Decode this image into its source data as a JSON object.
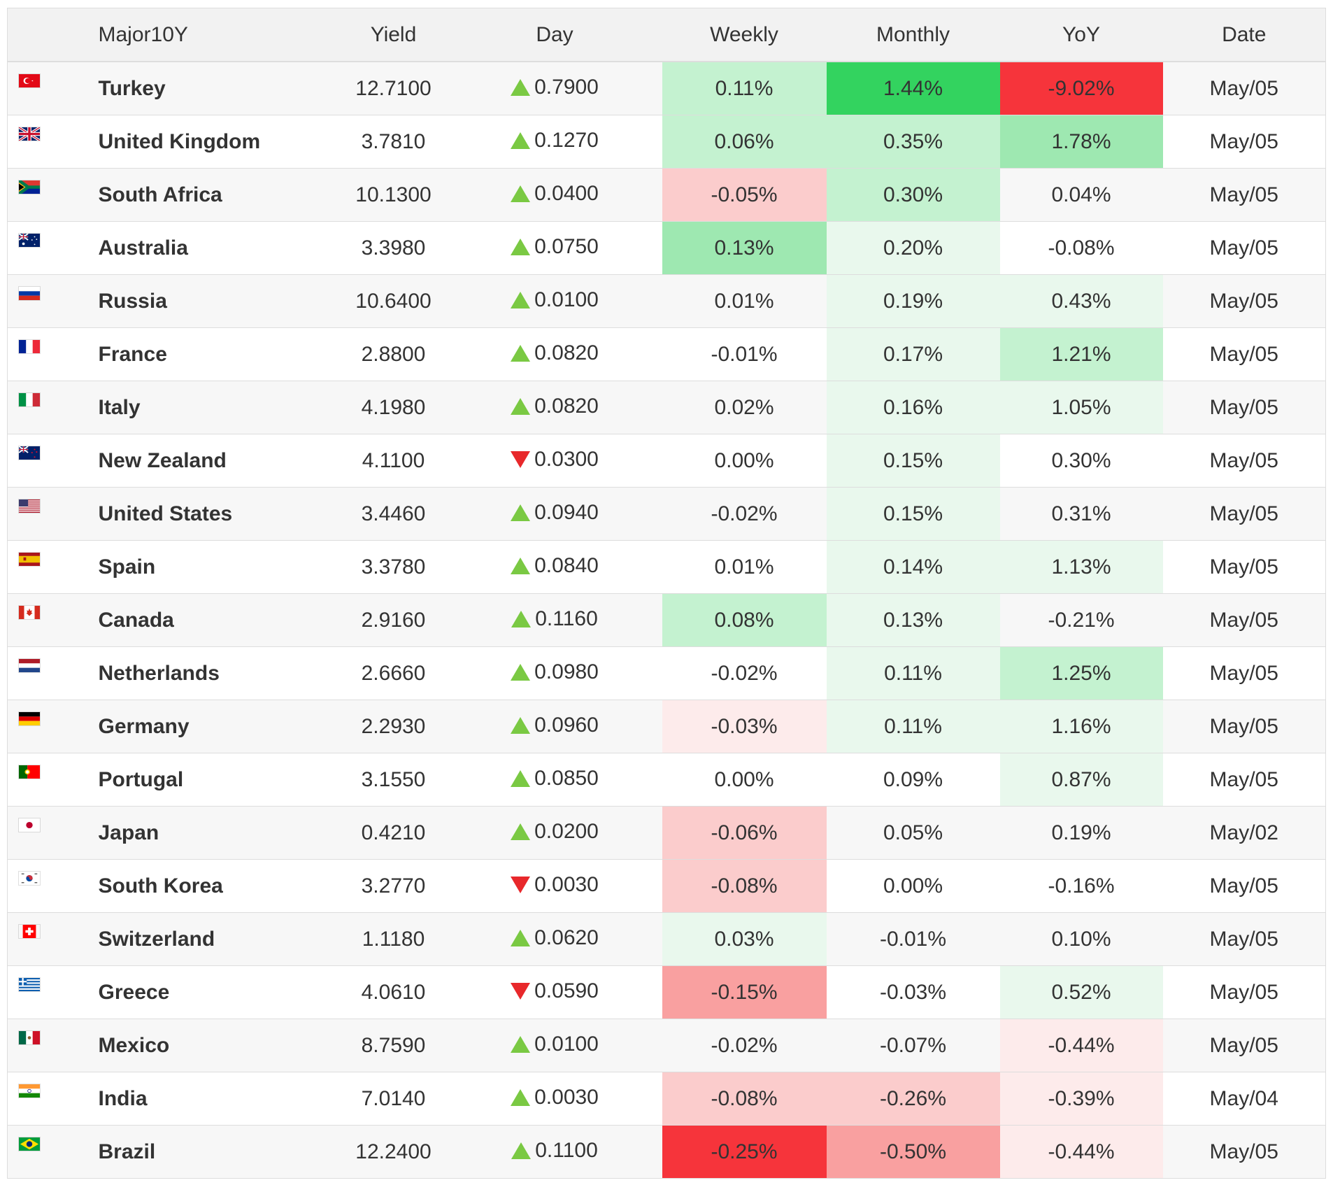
{
  "table": {
    "headers": [
      "Major10Y",
      "Yield",
      "Day",
      "Weekly",
      "Monthly",
      "YoY",
      "Date"
    ],
    "rows": [
      {
        "country": "Turkey",
        "flag_icon": "turkey-flag-icon",
        "yield": "12.7100",
        "day": "0.7900",
        "day_direction": "up",
        "weekly": "0.11%",
        "monthly": "1.44%",
        "yoy": "-9.02%",
        "date": "May/05"
      },
      {
        "country": "United Kingdom",
        "flag_icon": "united-kingdom-flag-icon",
        "yield": "3.7810",
        "day": "0.1270",
        "day_direction": "up",
        "weekly": "0.06%",
        "monthly": "0.35%",
        "yoy": "1.78%",
        "date": "May/05"
      },
      {
        "country": "South Africa",
        "flag_icon": "south-africa-flag-icon",
        "yield": "10.1300",
        "day": "0.0400",
        "day_direction": "up",
        "weekly": "-0.05%",
        "monthly": "0.30%",
        "yoy": "0.04%",
        "date": "May/05"
      },
      {
        "country": "Australia",
        "flag_icon": "australia-flag-icon",
        "yield": "3.3980",
        "day": "0.0750",
        "day_direction": "up",
        "weekly": "0.13%",
        "monthly": "0.20%",
        "yoy": "-0.08%",
        "date": "May/05"
      },
      {
        "country": "Russia",
        "flag_icon": "russia-flag-icon",
        "yield": "10.6400",
        "day": "0.0100",
        "day_direction": "up",
        "weekly": "0.01%",
        "monthly": "0.19%",
        "yoy": "0.43%",
        "date": "May/05"
      },
      {
        "country": "France",
        "flag_icon": "france-flag-icon",
        "yield": "2.8800",
        "day": "0.0820",
        "day_direction": "up",
        "weekly": "-0.01%",
        "monthly": "0.17%",
        "yoy": "1.21%",
        "date": "May/05"
      },
      {
        "country": "Italy",
        "flag_icon": "italy-flag-icon",
        "yield": "4.1980",
        "day": "0.0820",
        "day_direction": "up",
        "weekly": "0.02%",
        "monthly": "0.16%",
        "yoy": "1.05%",
        "date": "May/05"
      },
      {
        "country": "New Zealand",
        "flag_icon": "new-zealand-flag-icon",
        "yield": "4.1100",
        "day": "0.0300",
        "day_direction": "down",
        "weekly": "0.00%",
        "monthly": "0.15%",
        "yoy": "0.30%",
        "date": "May/05"
      },
      {
        "country": "United States",
        "flag_icon": "united-states-flag-icon",
        "yield": "3.4460",
        "day": "0.0940",
        "day_direction": "up",
        "weekly": "-0.02%",
        "monthly": "0.15%",
        "yoy": "0.31%",
        "date": "May/05"
      },
      {
        "country": "Spain",
        "flag_icon": "spain-flag-icon",
        "yield": "3.3780",
        "day": "0.0840",
        "day_direction": "up",
        "weekly": "0.01%",
        "monthly": "0.14%",
        "yoy": "1.13%",
        "date": "May/05"
      },
      {
        "country": "Canada",
        "flag_icon": "canada-flag-icon",
        "yield": "2.9160",
        "day": "0.1160",
        "day_direction": "up",
        "weekly": "0.08%",
        "monthly": "0.13%",
        "yoy": "-0.21%",
        "date": "May/05"
      },
      {
        "country": "Netherlands",
        "flag_icon": "netherlands-flag-icon",
        "yield": "2.6660",
        "day": "0.0980",
        "day_direction": "up",
        "weekly": "-0.02%",
        "monthly": "0.11%",
        "yoy": "1.25%",
        "date": "May/05"
      },
      {
        "country": "Germany",
        "flag_icon": "germany-flag-icon",
        "yield": "2.2930",
        "day": "0.0960",
        "day_direction": "up",
        "weekly": "-0.03%",
        "monthly": "0.11%",
        "yoy": "1.16%",
        "date": "May/05"
      },
      {
        "country": "Portugal",
        "flag_icon": "portugal-flag-icon",
        "yield": "3.1550",
        "day": "0.0850",
        "day_direction": "up",
        "weekly": "0.00%",
        "monthly": "0.09%",
        "yoy": "0.87%",
        "date": "May/05"
      },
      {
        "country": "Japan",
        "flag_icon": "japan-flag-icon",
        "yield": "0.4210",
        "day": "0.0200",
        "day_direction": "up",
        "weekly": "-0.06%",
        "monthly": "0.05%",
        "yoy": "0.19%",
        "date": "May/02"
      },
      {
        "country": "South Korea",
        "flag_icon": "south-korea-flag-icon",
        "yield": "3.2770",
        "day": "0.0030",
        "day_direction": "down",
        "weekly": "-0.08%",
        "monthly": "0.00%",
        "yoy": "-0.16%",
        "date": "May/05"
      },
      {
        "country": "Switzerland",
        "flag_icon": "switzerland-flag-icon",
        "yield": "1.1180",
        "day": "0.0620",
        "day_direction": "up",
        "weekly": "0.03%",
        "monthly": "-0.01%",
        "yoy": "0.10%",
        "date": "May/05"
      },
      {
        "country": "Greece",
        "flag_icon": "greece-flag-icon",
        "yield": "4.0610",
        "day": "0.0590",
        "day_direction": "down",
        "weekly": "-0.15%",
        "monthly": "-0.03%",
        "yoy": "0.52%",
        "date": "May/05"
      },
      {
        "country": "Mexico",
        "flag_icon": "mexico-flag-icon",
        "yield": "8.7590",
        "day": "0.0100",
        "day_direction": "up",
        "weekly": "-0.02%",
        "monthly": "-0.07%",
        "yoy": "-0.44%",
        "date": "May/05"
      },
      {
        "country": "India",
        "flag_icon": "india-flag-icon",
        "yield": "7.0140",
        "day": "0.0030",
        "day_direction": "up",
        "weekly": "-0.08%",
        "monthly": "-0.26%",
        "yoy": "-0.39%",
        "date": "May/04"
      },
      {
        "country": "Brazil",
        "flag_icon": "brazil-flag-icon",
        "yield": "12.2400",
        "day": "0.1100",
        "day_direction": "up",
        "weekly": "-0.25%",
        "monthly": "-0.50%",
        "yoy": "-0.44%",
        "date": "May/05"
      }
    ]
  },
  "colors": {
    "positive_strong": "#33d35f",
    "positive_mid": "#9ee8b1",
    "positive_light": "#c4f2d0",
    "positive_faint": "#e9f8ed",
    "negative_strong": "#f6343b",
    "negative_mid": "#f9a0a0",
    "negative_light": "#fbcccc",
    "negative_faint": "#fdebeb",
    "arrow_up": "#7ac943",
    "arrow_down": "#e8282b",
    "header_bg": "#f2f2f2",
    "border": "#dddddd"
  }
}
